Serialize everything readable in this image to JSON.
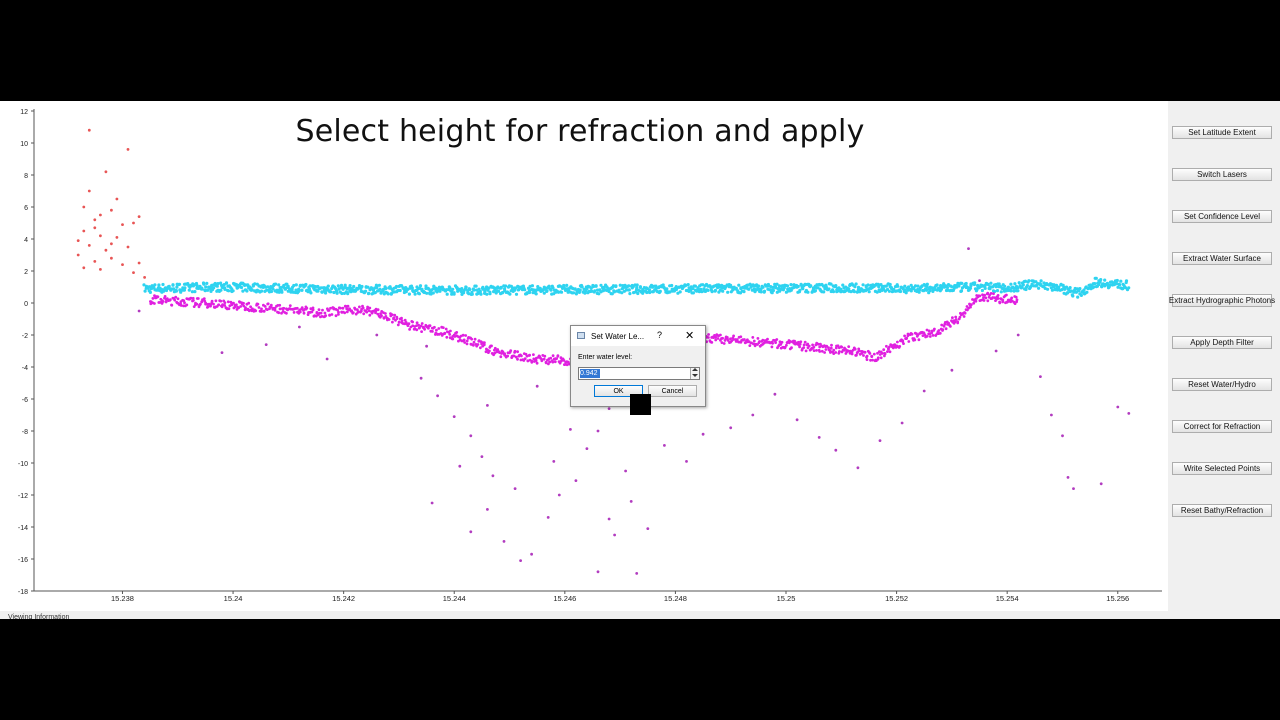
{
  "overlay_title": "Select height for refraction and apply",
  "status_bar": {
    "text": "Viewing Information"
  },
  "side_panel": {
    "buttons": [
      {
        "label": "Set Latitude Extent",
        "name": "set-latitude-extent-button"
      },
      {
        "label": "Switch Lasers",
        "name": "switch-lasers-button"
      },
      {
        "label": "Set Confidence Level",
        "name": "set-confidence-level-button"
      },
      {
        "label": "Extract Water Surface",
        "name": "extract-water-surface-button"
      },
      {
        "label": "Extract Hydrographic Photons",
        "name": "extract-hydrographic-photons-button"
      },
      {
        "label": "Apply Depth Filter",
        "name": "apply-depth-filter-button"
      },
      {
        "label": "Reset Water/Hydro",
        "name": "reset-water-hydro-button"
      },
      {
        "label": "Correct for Refraction",
        "name": "correct-for-refraction-button"
      },
      {
        "label": "Write Selected Points",
        "name": "write-selected-points-button"
      },
      {
        "label": "Reset Bathy/Refraction",
        "name": "reset-bathy-refraction-button"
      }
    ]
  },
  "dialog": {
    "title": "Set Water Le...",
    "help_glyph": "?",
    "close_glyph": "✕",
    "prompt": "Enter water level:",
    "value": "0.942",
    "ok_label": "OK",
    "cancel_label": "Cancel"
  },
  "colors": {
    "water_surface": "#2ed3f0",
    "bathymetry": "#e020e0",
    "noise": "#b23cc0",
    "land": "#e85555",
    "accent": "#0078d7"
  },
  "chart_data": {
    "type": "scatter",
    "title": "",
    "xlabel": "",
    "ylabel": "",
    "xlim": [
      15.2364,
      15.2568
    ],
    "ylim": [
      -18,
      12
    ],
    "x_ticks": [
      "15.238",
      "15.24",
      "15.242",
      "15.244",
      "15.246",
      "15.248",
      "15.25",
      "15.252",
      "15.254",
      "15.256"
    ],
    "x_tick_values": [
      15.238,
      15.24,
      15.242,
      15.244,
      15.246,
      15.248,
      15.25,
      15.252,
      15.254,
      15.256
    ],
    "y_ticks": [
      "12",
      "10",
      "8",
      "6",
      "4",
      "2",
      "0",
      "-2",
      "-4",
      "-6",
      "-8",
      "-10",
      "-12",
      "-14",
      "-16",
      "-18"
    ],
    "y_tick_values": [
      12,
      10,
      8,
      6,
      4,
      2,
      0,
      -2,
      -4,
      -6,
      -8,
      -10,
      -12,
      -14,
      -16,
      -18
    ],
    "grid": false,
    "series": [
      {
        "role": "land",
        "color": "#e85555",
        "points": [
          [
            15.2374,
            10.8
          ],
          [
            15.2381,
            9.6
          ],
          [
            15.2383,
            5.4
          ],
          [
            15.2373,
            6.0
          ],
          [
            15.2375,
            5.2
          ],
          [
            15.2378,
            5.8
          ],
          [
            15.2373,
            4.5
          ],
          [
            15.2376,
            4.2
          ],
          [
            15.238,
            4.9
          ],
          [
            15.2379,
            4.1
          ],
          [
            15.2374,
            3.6
          ],
          [
            15.2377,
            3.3
          ],
          [
            15.2372,
            3.0
          ],
          [
            15.2381,
            3.5
          ],
          [
            15.2375,
            2.6
          ],
          [
            15.2378,
            2.8
          ],
          [
            15.2373,
            2.2
          ],
          [
            15.2376,
            2.1
          ],
          [
            15.238,
            2.4
          ],
          [
            15.2382,
            1.9
          ],
          [
            15.2374,
            7.0
          ],
          [
            15.2377,
            8.2
          ],
          [
            15.2379,
            6.5
          ],
          [
            15.2376,
            5.5
          ],
          [
            15.2382,
            5.0
          ],
          [
            15.2383,
            2.5
          ],
          [
            15.2384,
            1.6
          ],
          [
            15.2372,
            3.9
          ],
          [
            15.2378,
            3.7
          ],
          [
            15.2375,
            4.7
          ]
        ]
      },
      {
        "role": "water_surface",
        "color": "#2ed3f0",
        "line": [
          [
            15.2384,
            0.9
          ],
          [
            15.2398,
            1.0
          ],
          [
            15.242,
            0.85
          ],
          [
            15.2445,
            0.8
          ],
          [
            15.2468,
            0.85
          ],
          [
            15.249,
            0.9
          ],
          [
            15.251,
            0.95
          ],
          [
            15.2525,
            0.9
          ],
          [
            15.2535,
            1.0
          ],
          [
            15.2541,
            0.95
          ],
          [
            15.2545,
            1.2
          ],
          [
            15.2549,
            1.0
          ],
          [
            15.2553,
            0.6
          ],
          [
            15.2556,
            1.3
          ],
          [
            15.2562,
            1.1
          ]
        ]
      },
      {
        "role": "bathymetry",
        "color": "#e020e0",
        "line": [
          [
            15.2385,
            0.2
          ],
          [
            15.2395,
            0.0
          ],
          [
            15.2402,
            -0.2
          ],
          [
            15.241,
            -0.4
          ],
          [
            15.2416,
            -0.6
          ],
          [
            15.2423,
            -0.4
          ],
          [
            15.2426,
            -0.6
          ],
          [
            15.2432,
            -1.4
          ],
          [
            15.2438,
            -1.8
          ],
          [
            15.2443,
            -2.4
          ],
          [
            15.2448,
            -3.1
          ],
          [
            15.2455,
            -3.5
          ],
          [
            15.2461,
            -3.6
          ],
          [
            15.2465,
            -4.5
          ],
          [
            15.2475,
            -2.5
          ],
          [
            15.2486,
            -2.2
          ],
          [
            15.2497,
            -2.5
          ],
          [
            15.2506,
            -2.8
          ],
          [
            15.2512,
            -3.0
          ],
          [
            15.2516,
            -3.4
          ],
          [
            15.2522,
            -2.2
          ],
          [
            15.2527,
            -1.8
          ],
          [
            15.2531,
            -1.0
          ],
          [
            15.2535,
            0.4
          ],
          [
            15.2538,
            0.3
          ],
          [
            15.2542,
            0.2
          ]
        ]
      },
      {
        "role": "noise",
        "color": "#b23cc0",
        "points": [
          [
            15.2383,
            -0.5
          ],
          [
            15.2398,
            -3.1
          ],
          [
            15.2406,
            -2.6
          ],
          [
            15.2412,
            -1.5
          ],
          [
            15.2417,
            -3.5
          ],
          [
            15.2426,
            -2.0
          ],
          [
            15.2434,
            -4.7
          ],
          [
            15.2437,
            -5.8
          ],
          [
            15.244,
            -7.1
          ],
          [
            15.2443,
            -8.3
          ],
          [
            15.2445,
            -9.6
          ],
          [
            15.2447,
            -10.8
          ],
          [
            15.2443,
            -14.3
          ],
          [
            15.2446,
            -12.9
          ],
          [
            15.2449,
            -14.9
          ],
          [
            15.2452,
            -16.1
          ],
          [
            15.2454,
            -15.7
          ],
          [
            15.2457,
            -13.4
          ],
          [
            15.2459,
            -12.0
          ],
          [
            15.2462,
            -11.1
          ],
          [
            15.2464,
            -9.1
          ],
          [
            15.2466,
            -8.0
          ],
          [
            15.2466,
            -16.8
          ],
          [
            15.2469,
            -14.5
          ],
          [
            15.2472,
            -12.4
          ],
          [
            15.2473,
            -16.9
          ],
          [
            15.2475,
            -14.1
          ],
          [
            15.2471,
            -10.5
          ],
          [
            15.2478,
            -8.9
          ],
          [
            15.2482,
            -9.9
          ],
          [
            15.2485,
            -8.2
          ],
          [
            15.249,
            -7.8
          ],
          [
            15.2494,
            -7.0
          ],
          [
            15.2498,
            -5.7
          ],
          [
            15.2502,
            -7.3
          ],
          [
            15.2506,
            -8.4
          ],
          [
            15.2509,
            -9.2
          ],
          [
            15.2513,
            -10.3
          ],
          [
            15.2517,
            -8.6
          ],
          [
            15.2521,
            -7.5
          ],
          [
            15.2525,
            -5.5
          ],
          [
            15.253,
            -4.2
          ],
          [
            15.2538,
            -3.0
          ],
          [
            15.2542,
            -2.0
          ],
          [
            15.2546,
            -4.6
          ],
          [
            15.2548,
            -7.0
          ],
          [
            15.255,
            -8.3
          ],
          [
            15.2551,
            -10.9
          ],
          [
            15.2552,
            -11.6
          ],
          [
            15.2557,
            -11.3
          ],
          [
            15.2562,
            -6.9
          ],
          [
            15.256,
            -6.5
          ],
          [
            15.2533,
            3.4
          ],
          [
            15.2535,
            1.4
          ],
          [
            15.2435,
            -2.7
          ],
          [
            15.2446,
            -6.4
          ],
          [
            15.2455,
            -5.2
          ],
          [
            15.2461,
            -7.9
          ],
          [
            15.2468,
            -6.6
          ],
          [
            15.2451,
            -11.6
          ],
          [
            15.2474,
            -6.2
          ],
          [
            15.2458,
            -9.9
          ],
          [
            15.2441,
            -10.2
          ],
          [
            15.2436,
            -12.5
          ],
          [
            15.2468,
            -13.5
          ]
        ]
      }
    ]
  }
}
